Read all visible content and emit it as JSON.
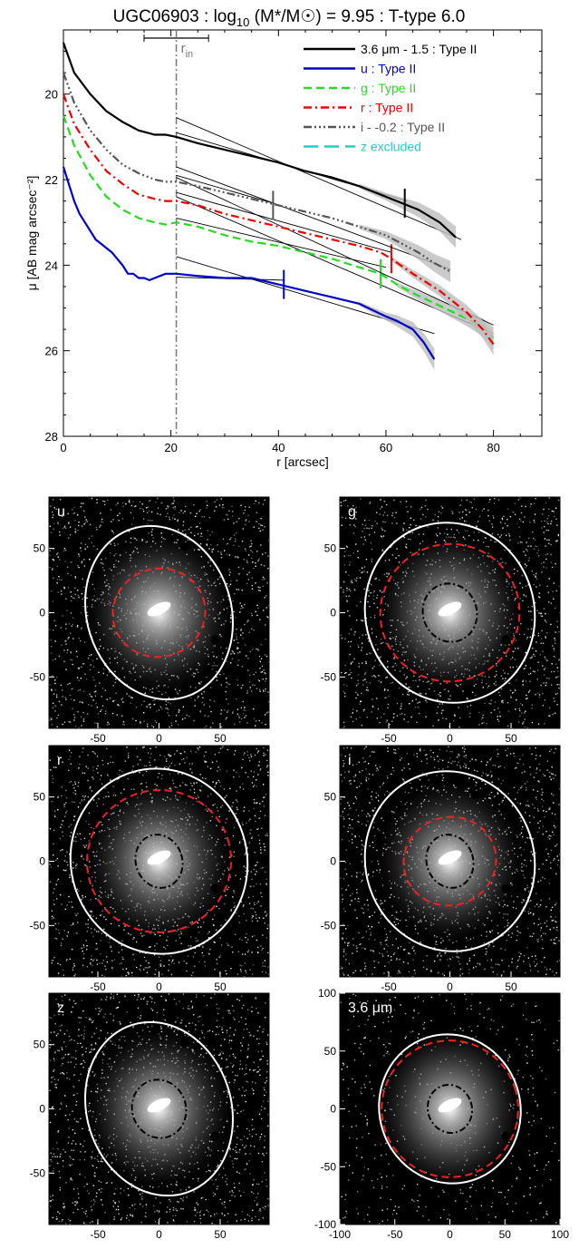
{
  "chart_data": [
    {
      "type": "line",
      "title": "UGC06903 : log₁₀ (M*/M☉) = 9.95 : T-type 6.0",
      "title_parts": {
        "galaxy": "UGC06903 : log",
        "sub": "10",
        "mass": " (M*/M☉) = 9.95 : T-type 6.0"
      },
      "xlabel": "r [arcsec]",
      "ylabel": "μ [AB mag arcsec⁻²]",
      "xlim": [
        0,
        89
      ],
      "ylim": [
        28,
        18.5
      ],
      "y_inverted": true,
      "x_ticks": [
        "0",
        "20",
        "40",
        "60",
        "80"
      ],
      "y_ticks": [
        "20",
        "22",
        "24",
        "26",
        "28"
      ],
      "r_in": {
        "label": "r",
        "sub": "in",
        "value": 21,
        "err": [
          15,
          27
        ]
      },
      "series": [
        {
          "name": "3.6 μm - 1.5 : Type II",
          "color": "#000000",
          "dash": "solid",
          "break": 63.5,
          "x": [
            0,
            2,
            5,
            8,
            11,
            14,
            17,
            19,
            21,
            25,
            30,
            35,
            40,
            45,
            50,
            55,
            60,
            63,
            66,
            70,
            73
          ],
          "y": [
            18.8,
            19.5,
            20.0,
            20.4,
            20.65,
            20.85,
            20.95,
            20.95,
            21.0,
            21.15,
            21.3,
            21.45,
            21.6,
            21.8,
            21.95,
            22.15,
            22.4,
            22.55,
            22.7,
            23.0,
            23.35
          ],
          "fit_inner": [
            [
              21,
              20.9
            ],
            [
              64,
              22.5
            ]
          ],
          "fit_outer": [
            [
              21,
              20.55
            ],
            [
              74,
              23.4
            ]
          ]
        },
        {
          "name": "u : Type II",
          "color": "#0000cc",
          "dash": "solid",
          "break": 41,
          "x": [
            0,
            1,
            2,
            3,
            4,
            5,
            6,
            7,
            8,
            9,
            10,
            11,
            12,
            13,
            14,
            15,
            16,
            17,
            18,
            19,
            20,
            21,
            25,
            30,
            35,
            40,
            45,
            50,
            55,
            60,
            62,
            65,
            67,
            69
          ],
          "y": [
            21.7,
            22.1,
            22.5,
            22.8,
            23.0,
            23.2,
            23.4,
            23.5,
            23.6,
            23.7,
            23.85,
            24.0,
            24.2,
            24.2,
            24.3,
            24.3,
            24.35,
            24.3,
            24.25,
            24.2,
            24.2,
            24.2,
            24.25,
            24.3,
            24.3,
            24.45,
            24.6,
            24.75,
            24.9,
            25.2,
            25.3,
            25.5,
            25.8,
            26.2
          ],
          "fit_inner": [
            [
              21,
              24.28
            ],
            [
              41,
              24.35
            ]
          ],
          "fit_outer": [
            [
              21,
              23.8
            ],
            [
              69,
              25.6
            ]
          ]
        },
        {
          "name": "g : Type II",
          "color": "#22dd22",
          "dash": "dash",
          "break": 59,
          "x": [
            0,
            2,
            5,
            8,
            11,
            14,
            17,
            19,
            21,
            25,
            30,
            35,
            40,
            45,
            50,
            55,
            59,
            62,
            65,
            70,
            75,
            78,
            80
          ],
          "y": [
            20.5,
            21.2,
            21.9,
            22.4,
            22.7,
            22.9,
            23.0,
            23.05,
            23.0,
            23.1,
            23.3,
            23.45,
            23.55,
            23.7,
            23.85,
            24.05,
            24.2,
            24.45,
            24.65,
            24.95,
            25.25,
            25.45,
            25.7
          ],
          "fit_inner": [
            [
              21,
              22.9
            ],
            [
              60,
              24.05
            ]
          ],
          "fit_outer": [
            [
              21,
              22.4
            ],
            [
              80,
              25.6
            ]
          ]
        },
        {
          "name": "r : Type II",
          "color": "#ee0000",
          "dash": "dashdot",
          "break": 61,
          "x": [
            0,
            2,
            5,
            8,
            11,
            14,
            17,
            19,
            21,
            25,
            30,
            35,
            40,
            45,
            50,
            55,
            59,
            61,
            65,
            70,
            75,
            78,
            80
          ],
          "y": [
            20.0,
            20.7,
            21.3,
            21.8,
            22.1,
            22.35,
            22.45,
            22.5,
            22.5,
            22.6,
            22.8,
            22.95,
            23.1,
            23.25,
            23.4,
            23.55,
            23.7,
            23.85,
            24.2,
            24.6,
            25.1,
            25.5,
            25.85
          ],
          "fit_inner": [
            [
              21,
              22.3
            ],
            [
              61,
              23.7
            ]
          ],
          "fit_outer": [
            [
              21,
              21.95
            ],
            [
              80,
              25.4
            ]
          ]
        },
        {
          "name": "i - -0.2 : Type II",
          "color": "#555555",
          "dash": "dashdotdotdot",
          "break": 39,
          "x": [
            0,
            2,
            5,
            8,
            11,
            14,
            17,
            19,
            21,
            25,
            30,
            35,
            40,
            45,
            50,
            55,
            60,
            63,
            66,
            69,
            72
          ],
          "y": [
            19.5,
            20.2,
            20.85,
            21.3,
            21.65,
            21.85,
            22.0,
            22.05,
            22.05,
            22.15,
            22.3,
            22.45,
            22.6,
            22.75,
            22.9,
            23.1,
            23.3,
            23.5,
            23.7,
            23.95,
            24.15
          ],
          "fit_inner": [
            [
              21,
              21.9
            ],
            [
              39,
              22.55
            ]
          ],
          "fit_outer": [
            [
              21,
              21.7
            ],
            [
              72,
              24.1
            ]
          ]
        },
        {
          "name": "z excluded",
          "color": "#22cccc",
          "dash": "longdash",
          "break": null,
          "x": [],
          "y": []
        }
      ]
    },
    {
      "type": "image_panels",
      "panels": [
        {
          "label": "u",
          "x_ticks": [
            "-50",
            "0",
            "50"
          ],
          "y_ticks": [
            "50",
            "0",
            "-50"
          ],
          "xlim": [
            -90,
            90
          ],
          "ylim": [
            -90,
            90
          ],
          "ellipses": {
            "outer": [
              59,
              72
            ],
            "mid": [
              38,
              36
            ],
            "inner": null
          }
        },
        {
          "label": "g",
          "x_ticks": [
            "-50",
            "0",
            "50"
          ],
          "y_ticks": [
            "50",
            "0",
            "-50"
          ],
          "xlim": [
            -90,
            90
          ],
          "ylim": [
            -90,
            90
          ],
          "ellipses": {
            "outer": [
              69,
              74
            ],
            "mid": [
              57,
              56
            ],
            "inner": [
              22,
              24
            ]
          }
        },
        {
          "label": "r",
          "x_ticks": [
            "-50",
            "0",
            "50"
          ],
          "y_ticks": [
            "50",
            "0",
            "-50"
          ],
          "xlim": [
            -90,
            90
          ],
          "ylim": [
            -90,
            90
          ],
          "ellipses": {
            "outer": [
              72,
              76
            ],
            "mid": [
              59,
              58
            ],
            "inner": [
              19,
              22
            ]
          }
        },
        {
          "label": "i",
          "x_ticks": [
            "-50",
            "0",
            "50"
          ],
          "y_ticks": [
            "50",
            "0",
            "-50"
          ],
          "xlim": [
            -90,
            90
          ],
          "ylim": [
            -90,
            90
          ],
          "ellipses": {
            "outer": [
              69,
              74
            ],
            "mid": [
              38,
              36
            ],
            "inner": [
              19,
              22
            ]
          }
        },
        {
          "label": "z",
          "x_ticks": [
            "-50",
            "0",
            "50"
          ],
          "y_ticks": [
            "50",
            "0",
            "-50"
          ],
          "xlim": [
            -90,
            90
          ],
          "ylim": [
            -90,
            90
          ],
          "ellipses": {
            "outer": [
              59,
              72
            ],
            "mid": null,
            "inner": [
              22,
              24
            ]
          }
        },
        {
          "label": "3.6 μm",
          "x_ticks": [
            "-100",
            "-50",
            "0",
            "50",
            "100"
          ],
          "y_ticks": [
            "100",
            "50",
            "0",
            "-50",
            "-100"
          ],
          "xlim": [
            -100,
            100
          ],
          "ylim": [
            -100,
            100
          ],
          "ellipses": {
            "outer": [
              64,
              68
            ],
            "mid": [
              62,
              62
            ],
            "inner": [
              20,
              22
            ]
          }
        }
      ]
    }
  ]
}
